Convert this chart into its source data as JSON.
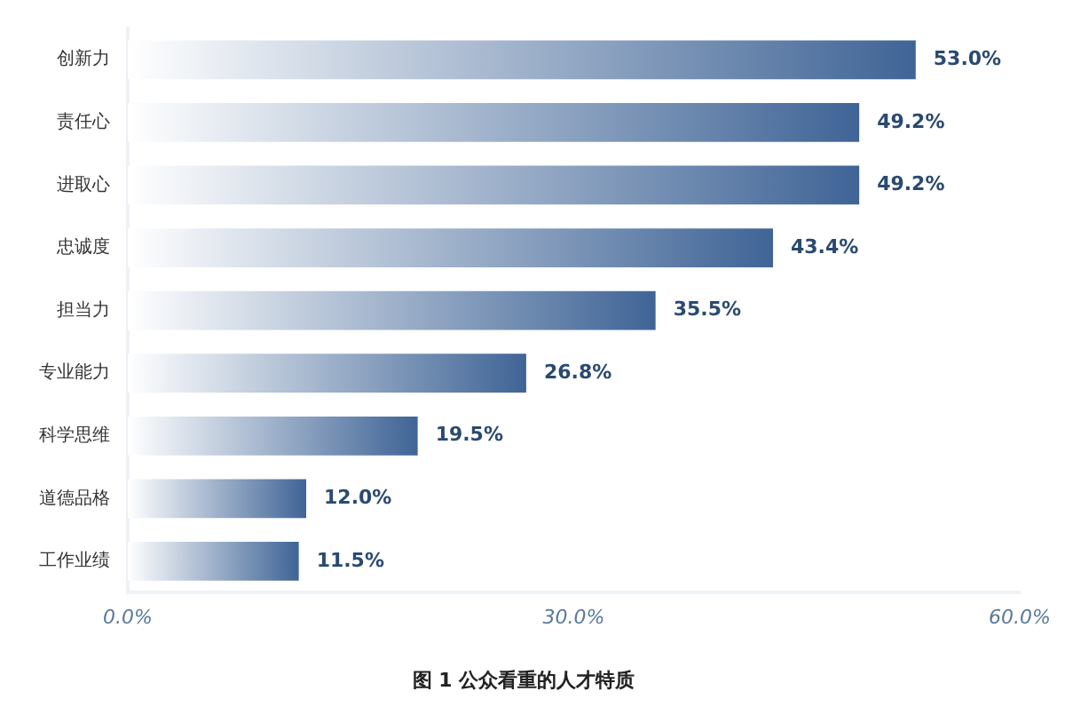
{
  "chart_data": {
    "type": "bar",
    "orientation": "horizontal",
    "title": "图 1 公众看重的人才特质",
    "categories": [
      "创新力",
      "责任心",
      "进取心",
      "忠诚度",
      "担当力",
      "专业能力",
      "科学思维",
      "道德品格",
      "工作业绩"
    ],
    "values": [
      53.0,
      49.2,
      49.2,
      43.4,
      35.5,
      26.8,
      19.5,
      12.0,
      11.5
    ],
    "value_labels": [
      "53.0%",
      "49.2%",
      "49.2%",
      "43.4%",
      "35.5%",
      "26.8%",
      "19.5%",
      "12.0%",
      "11.5%"
    ],
    "color": "#3f6496",
    "xlim": [
      0,
      60
    ],
    "xticks": [
      {
        "value": 0,
        "label": "0.0%"
      },
      {
        "value": 30,
        "label": "30.0%"
      },
      {
        "value": 60,
        "label": "60.0%"
      }
    ],
    "grid": false,
    "legend": false
  }
}
